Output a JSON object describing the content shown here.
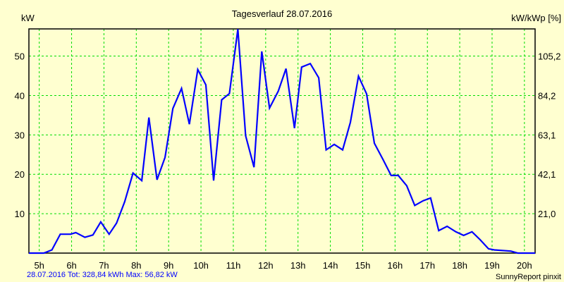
{
  "chart_data": {
    "type": "line",
    "title": "Tagesverlauf 28.07.2016",
    "ylabel": "kW",
    "ylabel_right": "kW/kWp [%]",
    "xlabel": "",
    "xlim": [
      4.68,
      20.33
    ],
    "ylim": [
      0,
      56.9
    ],
    "ylim_right": [
      0,
      119.7
    ],
    "grid": true,
    "x_ticks": [
      5,
      6,
      7,
      8,
      9,
      10,
      11,
      12,
      13,
      14,
      15,
      16,
      17,
      18,
      19,
      20
    ],
    "x_tick_labels": [
      "5h",
      "6h",
      "7h",
      "8h",
      "9h",
      "10h",
      "11h",
      "12h",
      "13h",
      "14h",
      "15h",
      "16h",
      "17h",
      "18h",
      "19h",
      "20h"
    ],
    "y_ticks": [
      10,
      20,
      30,
      40,
      50
    ],
    "y_tick_labels": [
      "10",
      "20",
      "30",
      "40",
      "50"
    ],
    "y_right_ticks": [
      21.0,
      42.1,
      63.1,
      84.2,
      105.2
    ],
    "y_right_tick_labels": [
      "21,0",
      "42,1",
      "63,1",
      "84,2",
      "105,2"
    ],
    "series": [
      {
        "name": "kW",
        "color": "#0000ff",
        "x": [
          4.68,
          5.14,
          5.39,
          5.65,
          5.97,
          6.13,
          6.41,
          6.66,
          6.9,
          7.16,
          7.39,
          7.64,
          7.9,
          8.17,
          8.39,
          8.64,
          8.89,
          9.13,
          9.4,
          9.64,
          9.9,
          10.15,
          10.39,
          10.64,
          10.88,
          11.14,
          11.38,
          11.64,
          11.88,
          12.12,
          12.39,
          12.63,
          12.89,
          13.11,
          13.38,
          13.64,
          13.87,
          14.12,
          14.38,
          14.62,
          14.87,
          15.12,
          15.36,
          15.63,
          15.88,
          16.1,
          16.36,
          16.61,
          16.87,
          17.1,
          17.35,
          17.61,
          17.88,
          18.12,
          18.38,
          18.63,
          18.89,
          19.07,
          19.58,
          19.8,
          20.33
        ],
        "y": [
          0,
          0,
          0.8,
          4.8,
          4.8,
          5.2,
          4.0,
          4.6,
          7.9,
          4.8,
          7.6,
          13.0,
          20.3,
          18.4,
          34.4,
          18.6,
          24.3,
          36.7,
          41.8,
          32.7,
          46.6,
          42.7,
          18.4,
          38.9,
          40.5,
          56.82,
          29.8,
          21.8,
          51.2,
          36.8,
          41.1,
          46.8,
          31.7,
          47.2,
          48.1,
          44.5,
          26.2,
          27.6,
          26.2,
          33.2,
          44.9,
          40.4,
          27.9,
          23.7,
          19.7,
          19.7,
          17.1,
          12.1,
          13.3,
          14.0,
          5.7,
          6.8,
          5.4,
          4.5,
          5.4,
          3.4,
          1.1,
          0.8,
          0.5,
          0,
          0
        ]
      }
    ],
    "footer_left": "28.07.2016 Tot: 328,84 kWh Max: 56,82 kW",
    "footer_right": "SunnyReport pinxit"
  },
  "colors": {
    "background": "#ffffd0",
    "grid": "#00dd00",
    "line": "#0000ff",
    "footer_left": "#0000ff"
  }
}
